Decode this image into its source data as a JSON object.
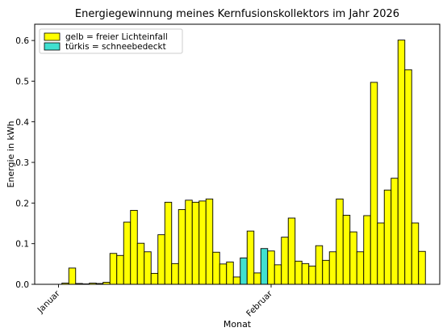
{
  "chart_data": {
    "type": "bar",
    "title": "Energiegewinnung meines Kernfusionskollektors im Jahr 2026",
    "xlabel": "Monat",
    "ylabel": "Energie in kWh",
    "ylim": [
      0,
      0.64
    ],
    "yticks": [
      0.0,
      0.1,
      0.2,
      0.3,
      0.4,
      0.5,
      0.6
    ],
    "ytick_labels": [
      "0.0",
      "0.1",
      "0.2",
      "0.3",
      "0.4",
      "0.5",
      "0.6"
    ],
    "xticks": [
      {
        "label": "Januar",
        "index": 0
      },
      {
        "label": "Februar",
        "index": 31
      }
    ],
    "grid": false,
    "legend_position": "top-left",
    "colors": {
      "free": "#ffff00",
      "snow": "#40e0d0",
      "edge": "#000000"
    },
    "legend": [
      {
        "label": "gelb = freier Lichteinfall",
        "category": "free"
      },
      {
        "label": "türkis = schneebedeckt",
        "category": "snow"
      }
    ],
    "values": [
      0.0,
      0.003,
      0.04,
      0.002,
      0.001,
      0.003,
      0.002,
      0.005,
      0.076,
      0.071,
      0.153,
      0.182,
      0.101,
      0.08,
      0.027,
      0.122,
      0.202,
      0.051,
      0.184,
      0.207,
      0.202,
      0.205,
      0.21,
      0.079,
      0.05,
      0.055,
      0.018,
      0.065,
      0.131,
      0.028,
      0.088,
      0.082,
      0.048,
      0.116,
      0.163,
      0.057,
      0.051,
      0.045,
      0.095,
      0.059,
      0.08,
      0.21,
      0.17,
      0.129,
      0.08,
      0.169,
      0.497,
      0.151,
      0.232,
      0.261,
      0.601,
      0.528,
      0.151,
      0.081
    ],
    "categories": [
      "free",
      "free",
      "free",
      "free",
      "free",
      "free",
      "free",
      "free",
      "free",
      "free",
      "free",
      "free",
      "free",
      "free",
      "free",
      "free",
      "free",
      "free",
      "free",
      "free",
      "free",
      "free",
      "free",
      "free",
      "free",
      "free",
      "free",
      "snow",
      "free",
      "free",
      "snow",
      "free",
      "free",
      "free",
      "free",
      "free",
      "free",
      "free",
      "free",
      "free",
      "free",
      "free",
      "free",
      "free",
      "free",
      "free",
      "free",
      "free",
      "free",
      "free",
      "free",
      "free",
      "free",
      "free"
    ]
  }
}
